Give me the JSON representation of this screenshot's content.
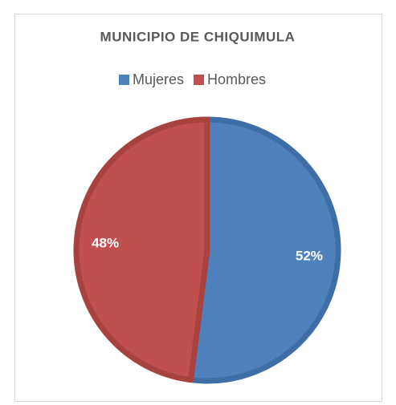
{
  "chart_data": {
    "type": "pie",
    "title": "MUNICIPIO DE CHIQUIMULA",
    "categories": [
      "Mujeres",
      "Hombres"
    ],
    "values": [
      52,
      48
    ],
    "value_labels": [
      "52%",
      "48%"
    ],
    "colors": [
      "#4f81bd",
      "#c0504d"
    ],
    "edge_colors": [
      "#3f6ea6",
      "#a8423f"
    ],
    "legend": "top"
  }
}
